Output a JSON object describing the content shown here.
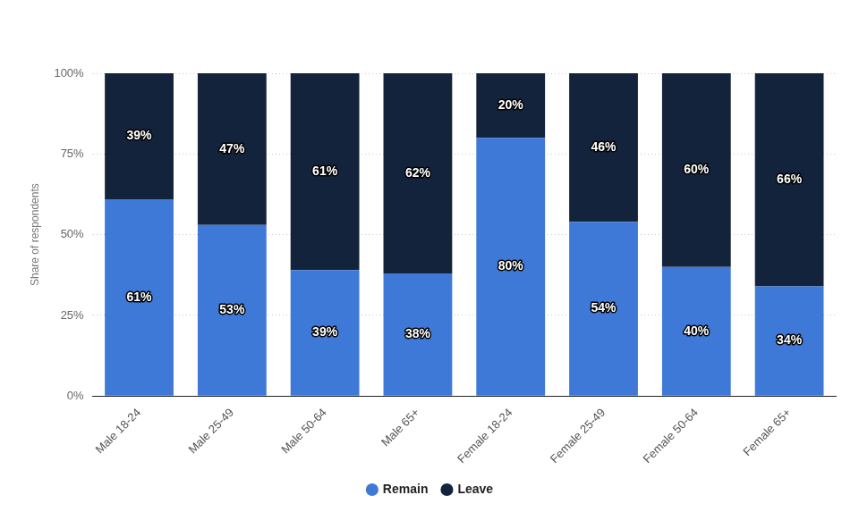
{
  "chart_data": {
    "type": "bar",
    "y_label": "Share of respondents",
    "categories": [
      "Male 18-24",
      "Male 25-49",
      "Male 50-64",
      "Male 65+",
      "Female 18-24",
      "Female 25-49",
      "Female 50-64",
      "Female 65+"
    ],
    "series": [
      {
        "name": "Remain",
        "color": "#3f79d7",
        "values": [
          61,
          53,
          39,
          38,
          80,
          54,
          40,
          34
        ],
        "value_labels": [
          "61%",
          "53%",
          "39%",
          "38%",
          "80%",
          "54%",
          "40%",
          "34%"
        ]
      },
      {
        "name": "Leave",
        "color": "#14233c",
        "values": [
          39,
          47,
          61,
          62,
          20,
          46,
          60,
          66
        ],
        "value_labels": [
          "39%",
          "47%",
          "61%",
          "62%",
          "20%",
          "46%",
          "60%",
          "66%"
        ]
      }
    ],
    "ylim": [
      0,
      100
    ],
    "yticks": [
      {
        "value": 0,
        "label": "0%"
      },
      {
        "value": 25,
        "label": "25%"
      },
      {
        "value": 50,
        "label": "50%"
      },
      {
        "value": 75,
        "label": "75%"
      },
      {
        "value": 100,
        "label": "100%"
      }
    ],
    "stacked": true,
    "grid": true,
    "data_labels": true,
    "legend": "bottom"
  }
}
